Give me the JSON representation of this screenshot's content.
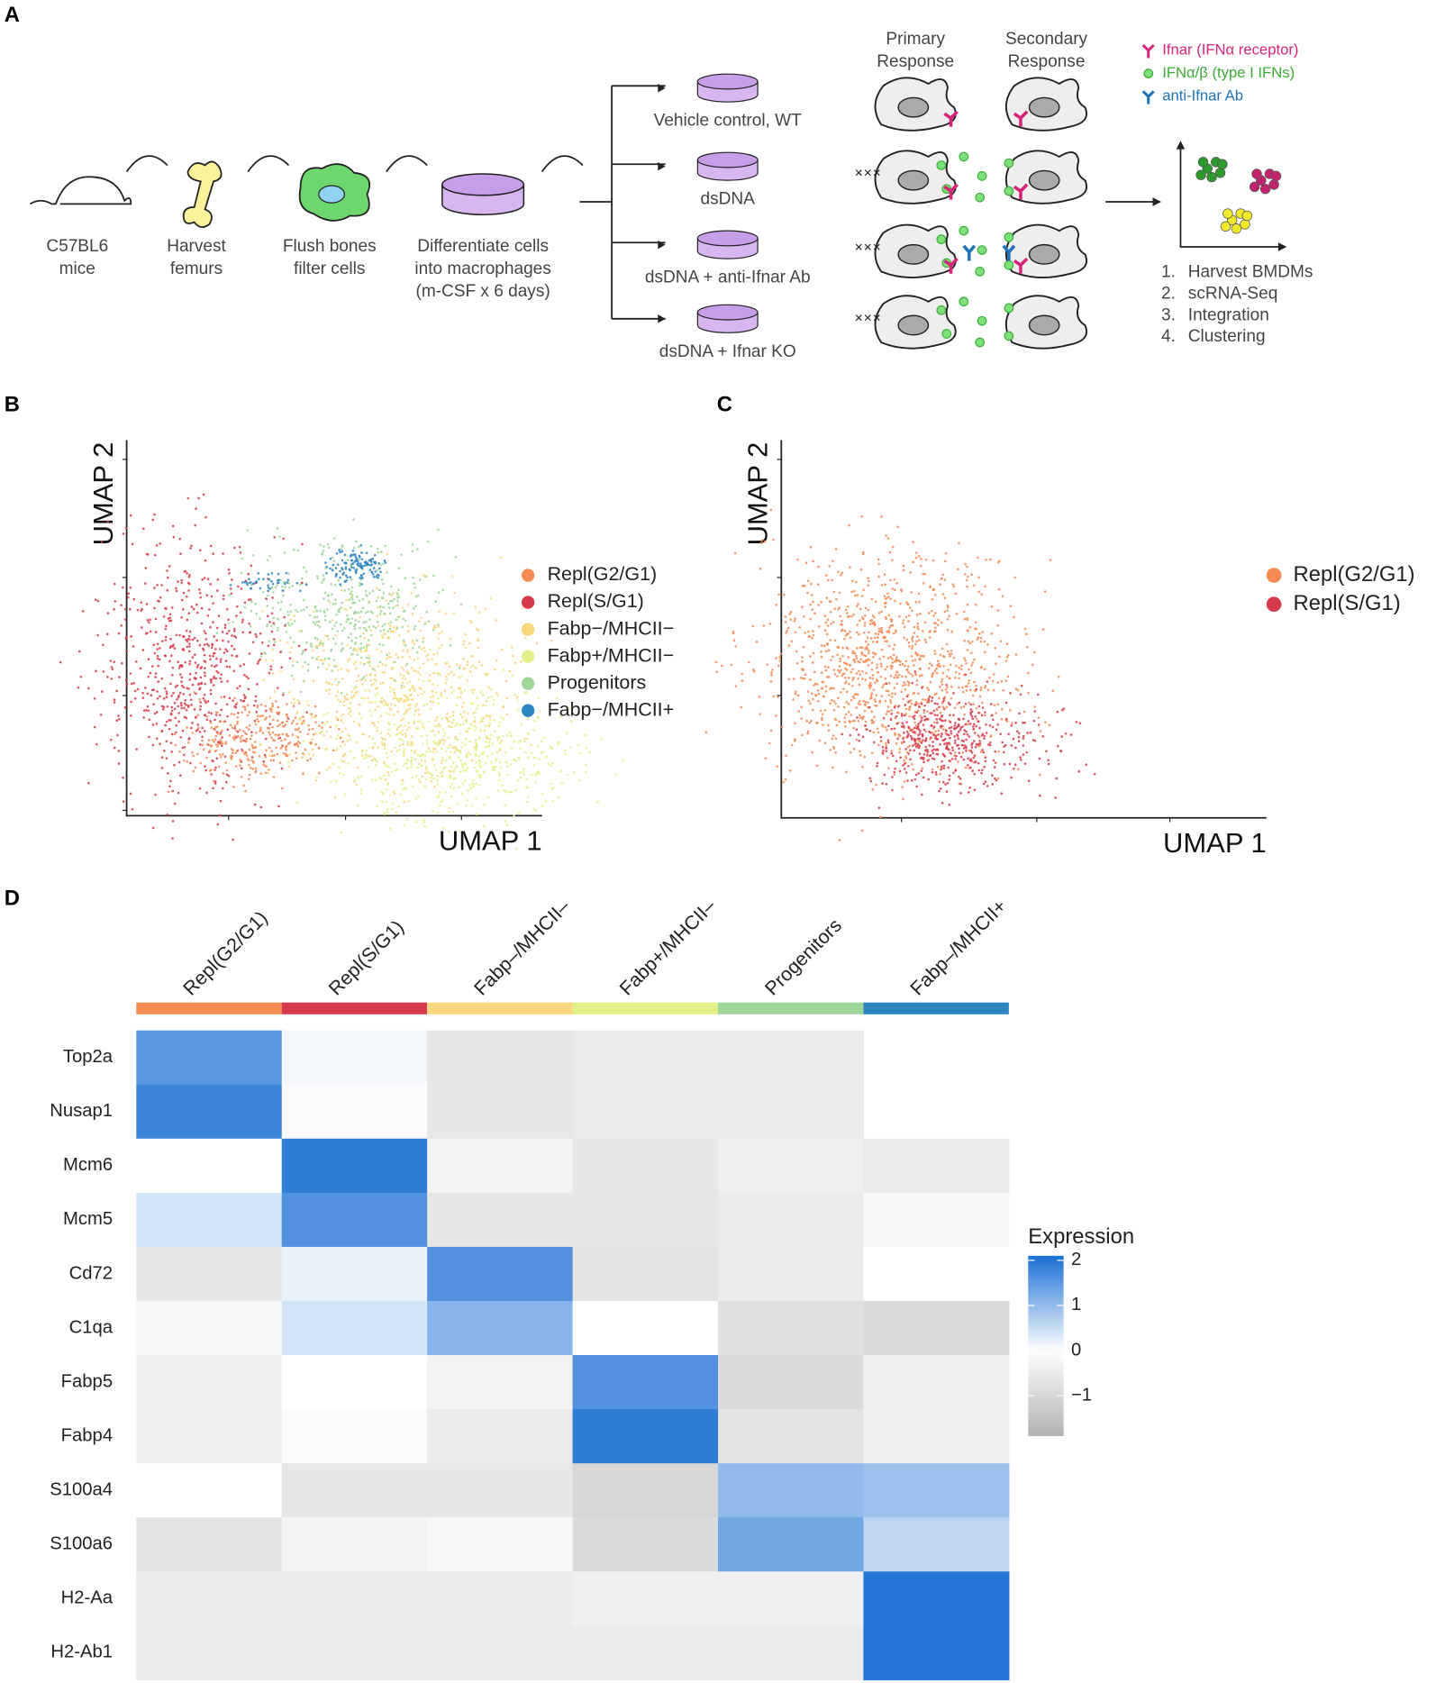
{
  "panel_labels": [
    "A",
    "B",
    "C",
    "D"
  ],
  "workflow": {
    "steps": [
      [
        "C57BL6",
        "mice"
      ],
      [
        "Harvest",
        "femurs"
      ],
      [
        "Flush bones",
        "filter cells"
      ],
      [
        "Differentiate cells",
        "into macrophages",
        "(m-CSF x 6 days)"
      ]
    ],
    "conditions": [
      "Vehicle control, WT",
      "dsDNA",
      "dsDNA + anti-Ifnar Ab",
      "dsDNA + Ifnar KO"
    ],
    "response_headers": [
      [
        "Primary",
        "Response"
      ],
      [
        "Secondary",
        "Response"
      ]
    ],
    "key": [
      {
        "text": "Ifnar (IFNα receptor)",
        "color": "#d6247a"
      },
      {
        "text": "IFNα/β (type I IFNs)",
        "color": "#3aaa35"
      },
      {
        "text": "anti-Ifnar Ab",
        "color": "#1f73b7"
      }
    ],
    "pipeline_numbers": [
      "1.",
      "2.",
      "3.",
      "4."
    ],
    "pipeline": [
      "Harvest BMDMs",
      "scRNA-Seq",
      "Integration",
      "Clustering"
    ]
  },
  "umap_b": {
    "type": "scatter",
    "xlabel": "UMAP 1",
    "ylabel": "UMAP 2",
    "series": [
      {
        "name": "Repl(G2/G1)",
        "color": "#f58a53"
      },
      {
        "name": "Repl(S/G1)",
        "color": "#d73a4a"
      },
      {
        "name": "Fabp−/MHCII−",
        "color": "#f9d77e"
      },
      {
        "name": "Fabp+/MHCII−",
        "color": "#e3f08a"
      },
      {
        "name": "Progenitors",
        "color": "#9fd69a"
      },
      {
        "name": "Fabp−/MHCII+",
        "color": "#2e86c1"
      }
    ]
  },
  "umap_c": {
    "type": "scatter",
    "xlabel": "UMAP 1",
    "ylabel": "UMAP 2",
    "series": [
      {
        "name": "Repl(G2/G1)",
        "color": "#f58a53"
      },
      {
        "name": "Repl(S/G1)",
        "color": "#d73a4a"
      }
    ]
  },
  "chart_data": {
    "type": "heatmap",
    "columns": [
      "Repl(G2/G1)",
      "Repl(S/G1)",
      "Fabp–/MHCII–",
      "Fabp+/MHCII–",
      "Progenitors",
      "Fabp–/MHCII+"
    ],
    "column_colors": [
      "#f58a53",
      "#d73a4a",
      "#f9d77e",
      "#e3f08a",
      "#9fd69a",
      "#2e86c1"
    ],
    "rows": [
      "Top2a",
      "Nusap1",
      "Mcm6",
      "Mcm5",
      "Cd72",
      "C1qa",
      "Fabp5",
      "Fabp4",
      "S100a4",
      "S100a6",
      "H2-Aa",
      "H2-Ab1"
    ],
    "values": [
      [
        1.5,
        0.1,
        -0.6,
        -0.5,
        -0.5,
        null
      ],
      [
        1.8,
        -0.1,
        -0.6,
        -0.5,
        -0.5,
        null
      ],
      [
        0.0,
        1.9,
        -0.3,
        -0.6,
        -0.4,
        -0.5
      ],
      [
        0.4,
        1.6,
        -0.6,
        -0.6,
        -0.5,
        -0.2
      ],
      [
        -0.6,
        0.2,
        1.6,
        -0.7,
        -0.5,
        0.0
      ],
      [
        -0.2,
        0.4,
        1.1,
        0.0,
        -0.8,
        -0.9
      ],
      [
        -0.4,
        0.0,
        -0.3,
        1.6,
        -0.9,
        -0.4
      ],
      [
        -0.4,
        -0.1,
        -0.5,
        1.9,
        -0.7,
        -0.4
      ],
      [
        0.0,
        -0.6,
        -0.6,
        -1.0,
        1.0,
        0.9
      ],
      [
        -0.7,
        -0.3,
        -0.2,
        -0.9,
        1.3,
        0.6
      ],
      [
        -0.5,
        -0.5,
        -0.5,
        -0.4,
        -0.4,
        2.0
      ],
      [
        -0.5,
        -0.5,
        -0.5,
        -0.5,
        -0.5,
        2.0
      ]
    ],
    "legend_title": "Expression",
    "clim": [
      -1.9,
      2.1
    ],
    "cticks": [
      2,
      1,
      0,
      {
        "value": -1,
        "label": "−1"
      }
    ],
    "colors": {
      "low": "#b3b3b3",
      "mid": "#ffffff",
      "high": "#1a6fd4"
    }
  }
}
